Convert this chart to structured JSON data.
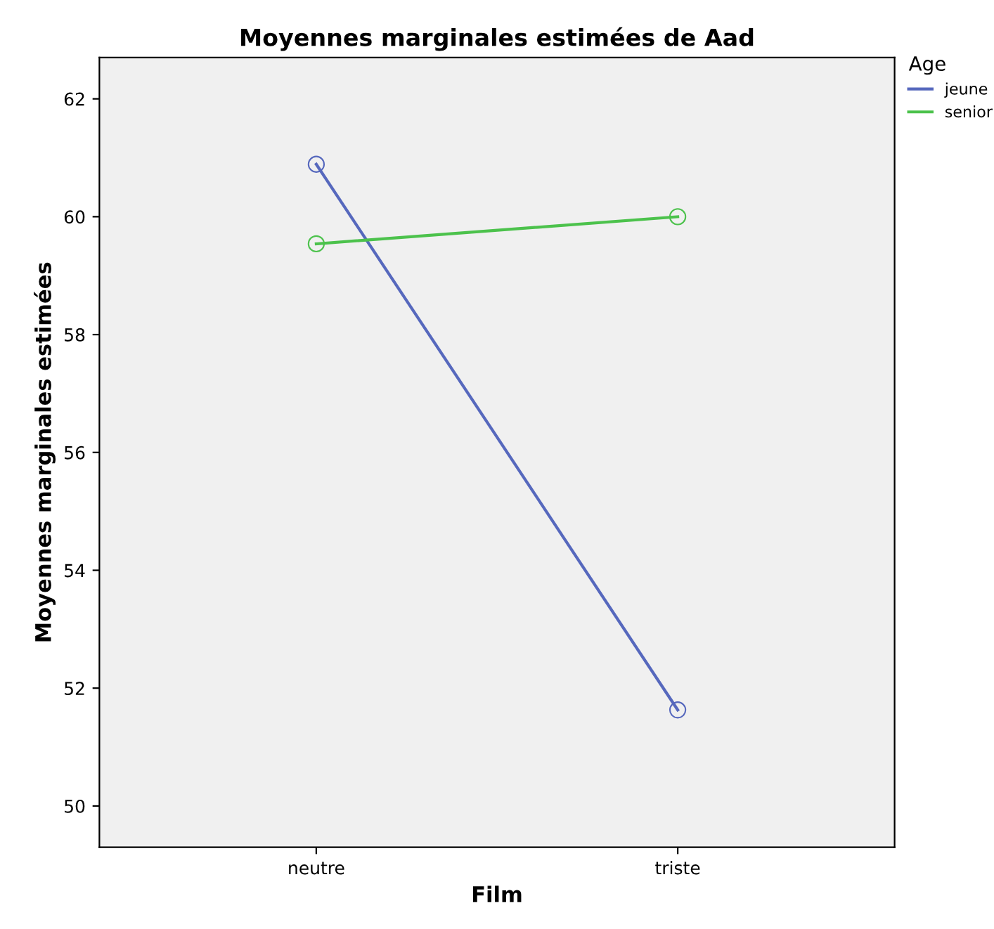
{
  "chart_data": {
    "type": "line",
    "title": "Moyennes marginales estimées de Aad",
    "xlabel": "Film",
    "ylabel": "Moyennes marginales estimées",
    "legend_title": "Age",
    "categories": [
      "neutre",
      "triste"
    ],
    "series": [
      {
        "name": "jeune",
        "color": "#5668bd",
        "values": [
          60.89,
          51.63
        ]
      },
      {
        "name": "senior",
        "color": "#4cc24c",
        "values": [
          59.54,
          60.0
        ]
      }
    ],
    "ylim": [
      49.3,
      62.7
    ],
    "yticks": [
      50,
      52,
      54,
      56,
      58,
      60,
      62
    ],
    "grid": false,
    "legend": "top right",
    "marker": "circle",
    "line_style": "solid"
  }
}
